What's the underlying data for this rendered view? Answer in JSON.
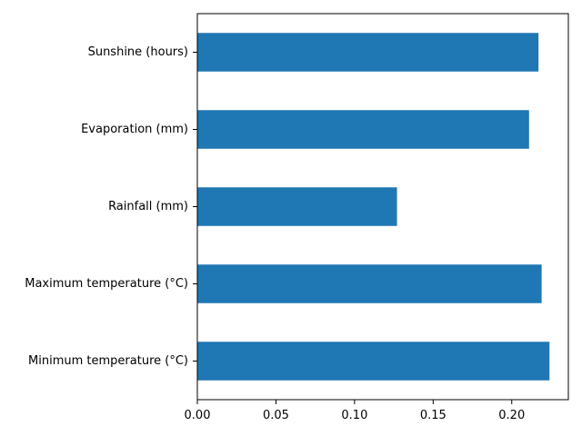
{
  "chart_data": {
    "type": "bar",
    "orientation": "horizontal",
    "categories": [
      "Minimum temperature (°C)",
      "Maximum temperature (°C)",
      "Rainfall (mm)",
      "Evaporation (mm)",
      "Sunshine (hours)"
    ],
    "values": [
      0.224,
      0.219,
      0.127,
      0.211,
      0.217
    ],
    "title": "",
    "xlabel": "",
    "ylabel": "",
    "xlim": [
      0,
      0.236
    ],
    "xticks": [
      0.0,
      0.05,
      0.1,
      0.15,
      0.2
    ],
    "xtick_labels": [
      "0.00",
      "0.05",
      "0.10",
      "0.15",
      "0.20"
    ],
    "bar_color": "#1f77b4",
    "grid": false,
    "legend": "none"
  }
}
